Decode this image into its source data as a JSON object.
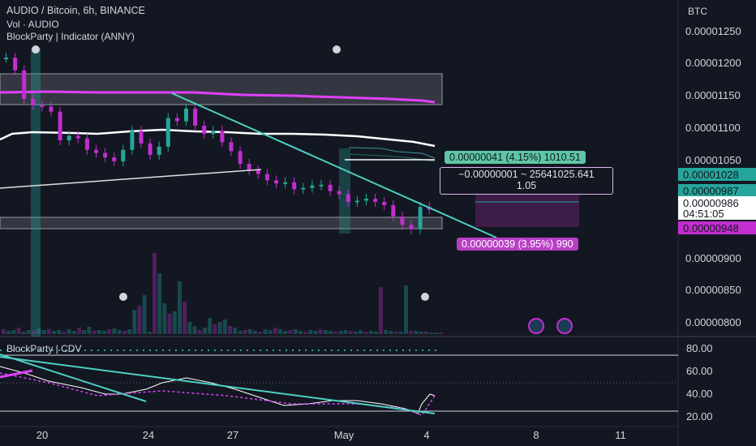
{
  "header": {
    "symbol": "AUDIO / Bitcoin, 6h, BINANCE",
    "vol": "Vol · AUDIO",
    "indicator": "BlockParty | Indicator (ANNY)"
  },
  "price_axis": {
    "currency": "BTC",
    "ticks": [
      "0.00001250",
      "0.00001200",
      "0.00001150",
      "0.00001100",
      "0.00001050",
      "0.00000900",
      "0.00000850",
      "0.00000800"
    ],
    "tags": [
      {
        "label": "0.00001028",
        "bg": "#26a69a",
        "fg": "#131722"
      },
      {
        "label": "0.00000987",
        "bg": "#26a69a",
        "fg": "#131722"
      },
      {
        "label": "0.00000986",
        "bg": "#ffffff",
        "fg": "#131722"
      },
      {
        "label": "04:51:05",
        "bg": "#ffffff",
        "fg": "#131722"
      },
      {
        "label": "0.00000948",
        "bg": "#c22ecf",
        "fg": "#131722"
      }
    ]
  },
  "measure_boxes": {
    "upper": "0.00000041 (4.15%) 1010.51",
    "middle_line1": "−0.00000001 ~ 25641025.641",
    "middle_line2": "1.05",
    "lower": "0.00000039 (3.95%) 990"
  },
  "sub_pane": {
    "title": "BlockParty | CDV",
    "ticks": [
      "80.00",
      "60.00",
      "40.00",
      "20.00"
    ]
  },
  "x_axis": {
    "ticks": [
      "20",
      "24",
      "27",
      "May",
      "4",
      "8",
      "11"
    ]
  },
  "colors": {
    "bull": "#26a69a",
    "bear": "#c22ecf",
    "magenta_line": "#e040fb",
    "trend": "#4dd0c4",
    "background": "#131722"
  },
  "chart_data": {
    "type": "candlestick",
    "interval": "6h",
    "ylim": [
      7.9e-06,
      1.28e-05
    ],
    "closes": [
      1.225e-05,
      1.205e-05,
      1.16e-05,
      1.15e-05,
      1.148e-05,
      1.14e-05,
      1.095e-05,
      1.102e-05,
      1.098e-05,
      1.08e-05,
      1.075e-05,
      1.068e-05,
      1.062e-05,
      1.08e-05,
      1.11e-05,
      1.09e-05,
      1.072e-05,
      1.085e-05,
      1.13e-05,
      1.125e-05,
      1.145e-05,
      1.118e-05,
      1.105e-05,
      1.11e-05,
      1.092e-05,
      1.078e-05,
      1.058e-05,
      1.048e-05,
      1.042e-05,
      1.032e-05,
      1.027e-05,
      1.029e-05,
      1.018e-05,
      1.02e-05,
      1.024e-05,
      1.025e-05,
      1.015e-05,
      1.01e-05,
      9.98e-06,
      1e-05,
      1.003e-05,
      9.98e-06,
      9.93e-06,
      9.75e-06,
      9.62e-06,
      9.55e-06,
      9.9e-06,
      9.86e-06
    ],
    "resistance_zone": [
      1.135e-05,
      1.18e-05
    ],
    "support_zone": [
      9.35e-06,
      9.48e-06
    ],
    "volume_spike_labels": []
  }
}
